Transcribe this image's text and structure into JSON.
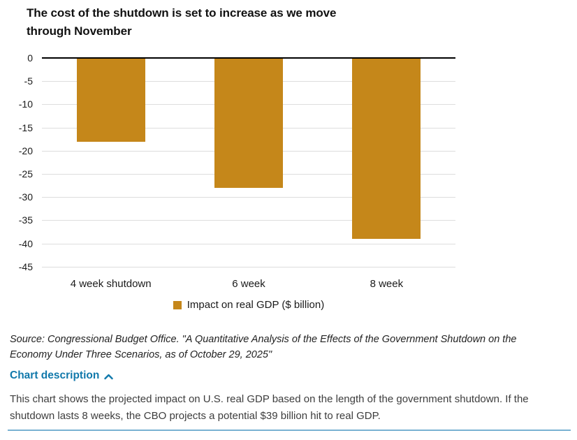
{
  "title": {
    "text": "The cost of the shutdown is set to increase as we move through November"
  },
  "chart_data": {
    "type": "bar",
    "categories": [
      "4 week shutdown",
      "6 week",
      "8 week"
    ],
    "values": [
      -18,
      -28,
      -39
    ],
    "series_name": "Impact on real GDP ($ billion)",
    "title": "The cost of the shutdown is set to increase as we move through November",
    "xlabel": "",
    "ylabel": "",
    "ylim": [
      -45,
      0
    ],
    "yticks": [
      0,
      -5,
      -10,
      -15,
      -20,
      -25,
      -30,
      -35,
      -40,
      -45
    ],
    "grid": true,
    "legend_position": "bottom-center",
    "bar_color": "#c5871a"
  },
  "legend": {
    "label": "Impact on real GDP ($ billion)"
  },
  "source": {
    "text": "Source: Congressional Budget Office. \"A Quantitative Analysis of the Effects of the Government Shutdown on the Economy Under Three Scenarios, as of October 29, 2025\""
  },
  "description": {
    "toggle_label": "Chart description",
    "icon": "chevron-up",
    "body": "This chart shows the projected impact on U.S. real GDP based on the length of the government shutdown. If the shutdown lasts 8 weeks, the CBO projects a potential $39 billion hit to real GDP."
  },
  "colors": {
    "bar": "#c5871a",
    "link_blue": "#1179ab",
    "divider_blue": "#79b2d2",
    "grid_gray": "#dddddd",
    "axis_black": "#000000",
    "text_dark": "#1a1a1a",
    "body_gray": "#3d3d3d"
  }
}
